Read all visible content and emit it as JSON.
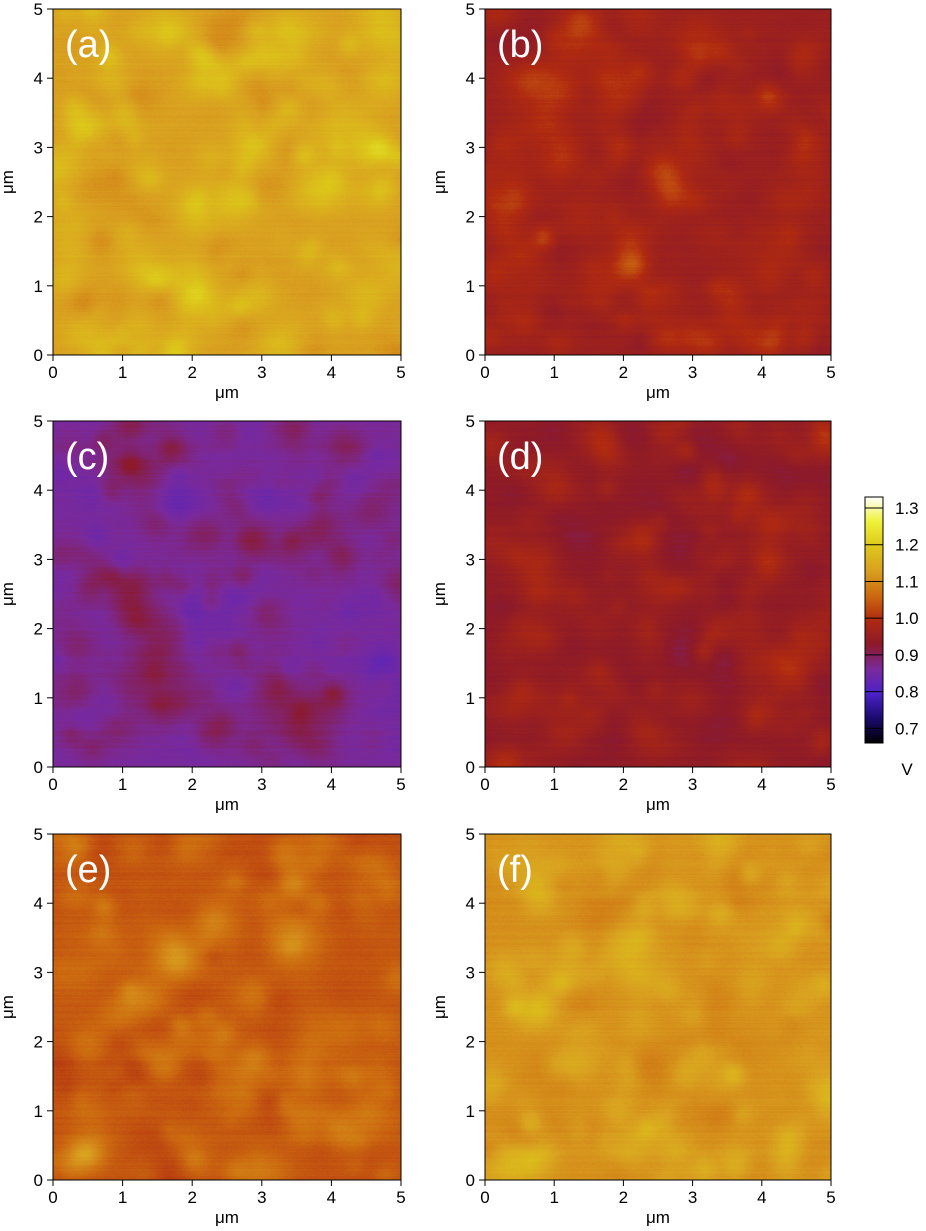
{
  "chart_data": {
    "type": "heatmap",
    "panels": [
      {
        "label": "(a)",
        "xlabel": "μm",
        "ylabel": "μm",
        "xlim": [
          0,
          5
        ],
        "ylim": [
          0,
          5
        ],
        "x_ticks": [
          "0",
          "1",
          "2",
          "3",
          "4",
          "5"
        ],
        "y_ticks": [
          "0",
          "1",
          "2",
          "3",
          "4",
          "5"
        ],
        "mean_potential_v": 1.13,
        "spot_amplitude_v": 0.06
      },
      {
        "label": "(b)",
        "xlabel": "μm",
        "ylabel": "μm",
        "xlim": [
          0,
          5
        ],
        "ylim": [
          0,
          5
        ],
        "x_ticks": [
          "0",
          "1",
          "2",
          "3",
          "4",
          "5"
        ],
        "y_ticks": [
          "0",
          "1",
          "2",
          "3",
          "4",
          "5"
        ],
        "mean_potential_v": 0.955,
        "spot_amplitude_v": 0.05
      },
      {
        "label": "(c)",
        "xlabel": "μm",
        "ylabel": "μm",
        "xlim": [
          0,
          5
        ],
        "ylim": [
          0,
          5
        ],
        "x_ticks": [
          "0",
          "1",
          "2",
          "3",
          "4",
          "5"
        ],
        "y_ticks": [
          "0",
          "1",
          "2",
          "3",
          "4",
          "5"
        ],
        "mean_potential_v": 0.86,
        "spot_amplitude_v": 0.045
      },
      {
        "label": "(d)",
        "xlabel": "μm",
        "ylabel": "μm",
        "xlim": [
          0,
          5
        ],
        "ylim": [
          0,
          5
        ],
        "x_ticks": [
          "0",
          "1",
          "2",
          "3",
          "4",
          "5"
        ],
        "y_ticks": [
          "0",
          "1",
          "2",
          "3",
          "4",
          "5"
        ],
        "mean_potential_v": 0.935,
        "spot_amplitude_v": 0.05
      },
      {
        "label": "(e)",
        "xlabel": "μm",
        "ylabel": "μm",
        "xlim": [
          0,
          5
        ],
        "ylim": [
          0,
          5
        ],
        "x_ticks": [
          "0",
          "1",
          "2",
          "3",
          "4",
          "5"
        ],
        "y_ticks": [
          "0",
          "1",
          "2",
          "3",
          "4",
          "5"
        ],
        "mean_potential_v": 1.04,
        "spot_amplitude_v": 0.05
      },
      {
        "label": "(f)",
        "xlabel": "μm",
        "ylabel": "μm",
        "xlim": [
          0,
          5
        ],
        "ylim": [
          0,
          5
        ],
        "x_ticks": [
          "0",
          "1",
          "2",
          "3",
          "4",
          "5"
        ],
        "y_ticks": [
          "0",
          "1",
          "2",
          "3",
          "4",
          "5"
        ],
        "mean_potential_v": 1.11,
        "spot_amplitude_v": 0.055
      }
    ],
    "colorbar": {
      "range": [
        0.66,
        1.33
      ],
      "ticks": [
        "1.3",
        "1.2",
        "1.1",
        "1.0",
        "0.9",
        "0.8",
        "0.7"
      ],
      "tick_values": [
        1.3,
        1.2,
        1.1,
        1.0,
        0.9,
        0.8,
        0.7
      ],
      "unit": "V",
      "colormap": [
        "#000000",
        "#1a0a6e",
        "#4a22c8",
        "#7a2a9c",
        "#8c1a2a",
        "#b02a10",
        "#cc6a10",
        "#d9a020",
        "#dcc81a",
        "#eef23a",
        "#ffffff"
      ]
    },
    "grid": false
  }
}
